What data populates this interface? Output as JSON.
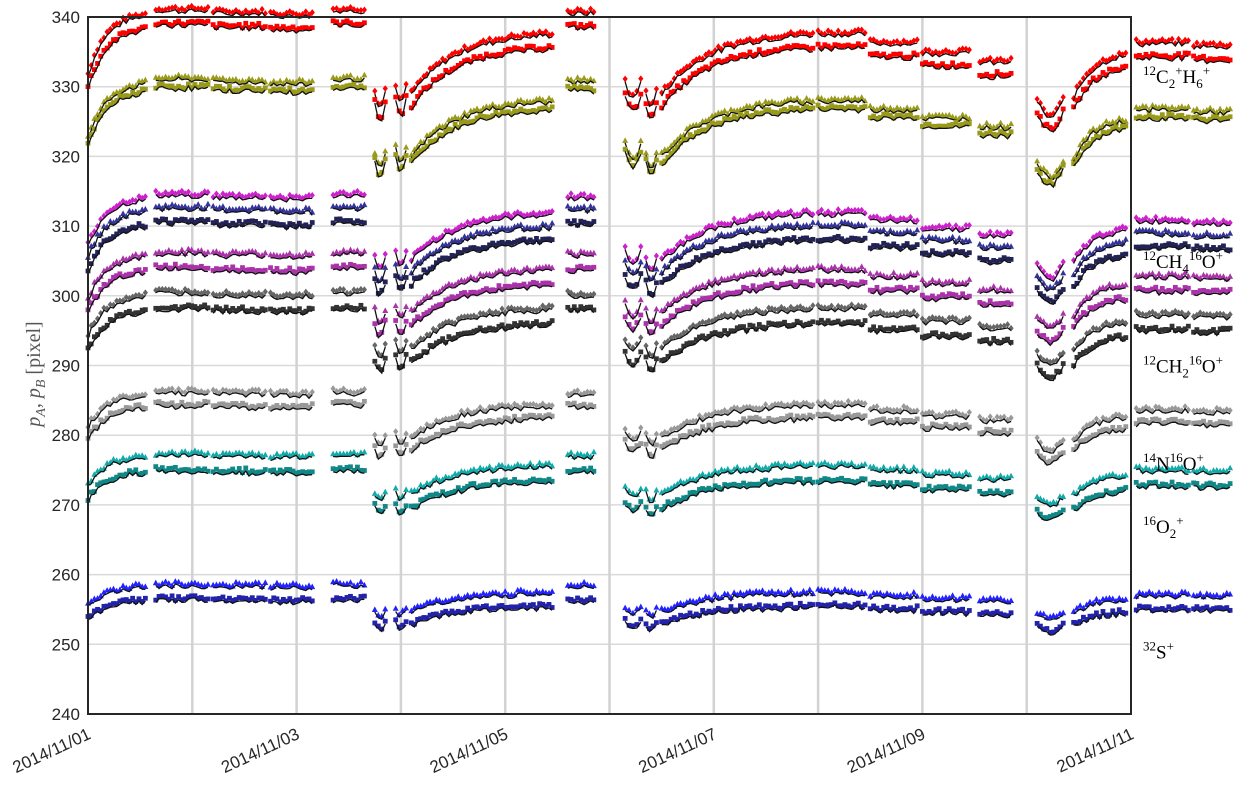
{
  "chart_data": {
    "type": "scatter",
    "title": "",
    "xlabel": "",
    "ylabel": "p_A, p_B [pixel]",
    "ylabel_parts": {
      "p1": "p",
      "s1": "A",
      "sep": ", ",
      "p2": "p",
      "s2": "B",
      "unit": " [pixel]"
    },
    "ylim": [
      240,
      340
    ],
    "yticks": [
      240,
      250,
      260,
      270,
      280,
      290,
      300,
      310,
      320,
      330,
      340
    ],
    "xlim": [
      "2014/11/01",
      "2014/11/11"
    ],
    "xticks": [
      "2014/11/01",
      "2014/11/03",
      "2014/11/05",
      "2014/11/07",
      "2014/11/09",
      "2014/11/11"
    ],
    "grid": true,
    "legend": "none",
    "species_labels": [
      {
        "sup1": "12",
        "base1": "C",
        "sub1": "2",
        "base2": "H",
        "sub2": "6",
        "sup2": "+",
        "y": 331.5
      },
      {
        "sup1": "12",
        "base1": "CH",
        "sub1": "4",
        "sup2": "16",
        "base2": "O",
        "sup3": "+",
        "y": 305
      },
      {
        "sup1": "12",
        "base1": "CH",
        "sub1": "2",
        "sup2": "16",
        "base2": "O",
        "sup3": "+",
        "y": 290
      },
      {
        "sup1": "14",
        "base1": "N",
        "sup2": "16",
        "base2": "O",
        "sup3": "+",
        "y": 276
      },
      {
        "sup1": "16",
        "base1": "O",
        "sub1": "2",
        "sup2": "+",
        "y": 267
      },
      {
        "sup1": "32",
        "base1": "S",
        "sup2": "+",
        "y": 249
      }
    ],
    "segments": [
      {
        "start": 0.0,
        "end": 0.55,
        "shape": "rise",
        "dy": 2
      },
      {
        "start": 0.65,
        "end": 1.15,
        "shape": "flat",
        "dy": 3.5
      },
      {
        "start": 1.2,
        "end": 1.7,
        "shape": "flat",
        "dy": 3.2
      },
      {
        "start": 1.75,
        "end": 2.15,
        "shape": "flat",
        "dy": 3
      },
      {
        "start": 2.35,
        "end": 2.65,
        "shape": "flat",
        "dy": 3.5
      },
      {
        "start": 2.75,
        "end": 2.85,
        "shape": "dip",
        "dy": -5
      },
      {
        "start": 2.95,
        "end": 3.05,
        "shape": "dip",
        "dy": -4.5
      },
      {
        "start": 3.1,
        "end": 4.45,
        "shape": "rise",
        "dy": 0
      },
      {
        "start": 4.6,
        "end": 4.85,
        "shape": "flat",
        "dy": 3.2
      },
      {
        "start": 5.15,
        "end": 5.3,
        "shape": "dip",
        "dy": -4
      },
      {
        "start": 5.35,
        "end": 5.45,
        "shape": "dip",
        "dy": -5
      },
      {
        "start": 5.5,
        "end": 6.95,
        "shape": "rise",
        "dy": 0
      },
      {
        "start": 7.0,
        "end": 7.45,
        "shape": "flat",
        "dy": 1
      },
      {
        "start": 7.5,
        "end": 7.95,
        "shape": "flat",
        "dy": 0
      },
      {
        "start": 8.0,
        "end": 8.45,
        "shape": "flat",
        "dy": -1
      },
      {
        "start": 8.55,
        "end": 8.85,
        "shape": "flat",
        "dy": -2
      },
      {
        "start": 9.1,
        "end": 9.35,
        "shape": "dip",
        "dy": -6
      },
      {
        "start": 9.45,
        "end": 9.95,
        "shape": "rise2",
        "dy": -1
      },
      {
        "start": 10.05,
        "end": 10.55,
        "shape": "flat",
        "dy": 0
      },
      {
        "start": 10.6,
        "end": 10.95,
        "shape": "flat",
        "dy": -0.3
      }
    ],
    "series": [
      {
        "color": "#ff0000",
        "marker": "diamond",
        "base": 336.5
      },
      {
        "color": "#ff0000",
        "marker": "square",
        "base": 334.5
      },
      {
        "color": "#9a9a1a",
        "marker": "triangle",
        "base": 327.0
      },
      {
        "color": "#9a9a1a",
        "marker": "square",
        "base": 325.8
      },
      {
        "color": "#cc22cc",
        "marker": "diamond",
        "base": 311.0
      },
      {
        "color": "#333399",
        "marker": "triangle",
        "base": 309.2
      },
      {
        "color": "#222255",
        "marker": "square",
        "base": 307.2
      },
      {
        "color": "#aa33aa",
        "marker": "triangle",
        "base": 303.0
      },
      {
        "color": "#aa33aa",
        "marker": "square",
        "base": 300.9
      },
      {
        "color": "#666666",
        "marker": "diamond",
        "base": 297.5
      },
      {
        "color": "#333333",
        "marker": "square",
        "base": 295.3
      },
      {
        "color": "#999999",
        "marker": "diamond",
        "base": 283.8
      },
      {
        "color": "#999999",
        "marker": "square",
        "base": 282.0
      },
      {
        "color": "#11aaaa",
        "marker": "triangle",
        "base": 275.2
      },
      {
        "color": "#118888",
        "marker": "square",
        "base": 273.0
      },
      {
        "color": "#2222ff",
        "marker": "triangle",
        "base": 257.2
      },
      {
        "color": "#2222aa",
        "marker": "square",
        "base": 255.2
      }
    ]
  }
}
